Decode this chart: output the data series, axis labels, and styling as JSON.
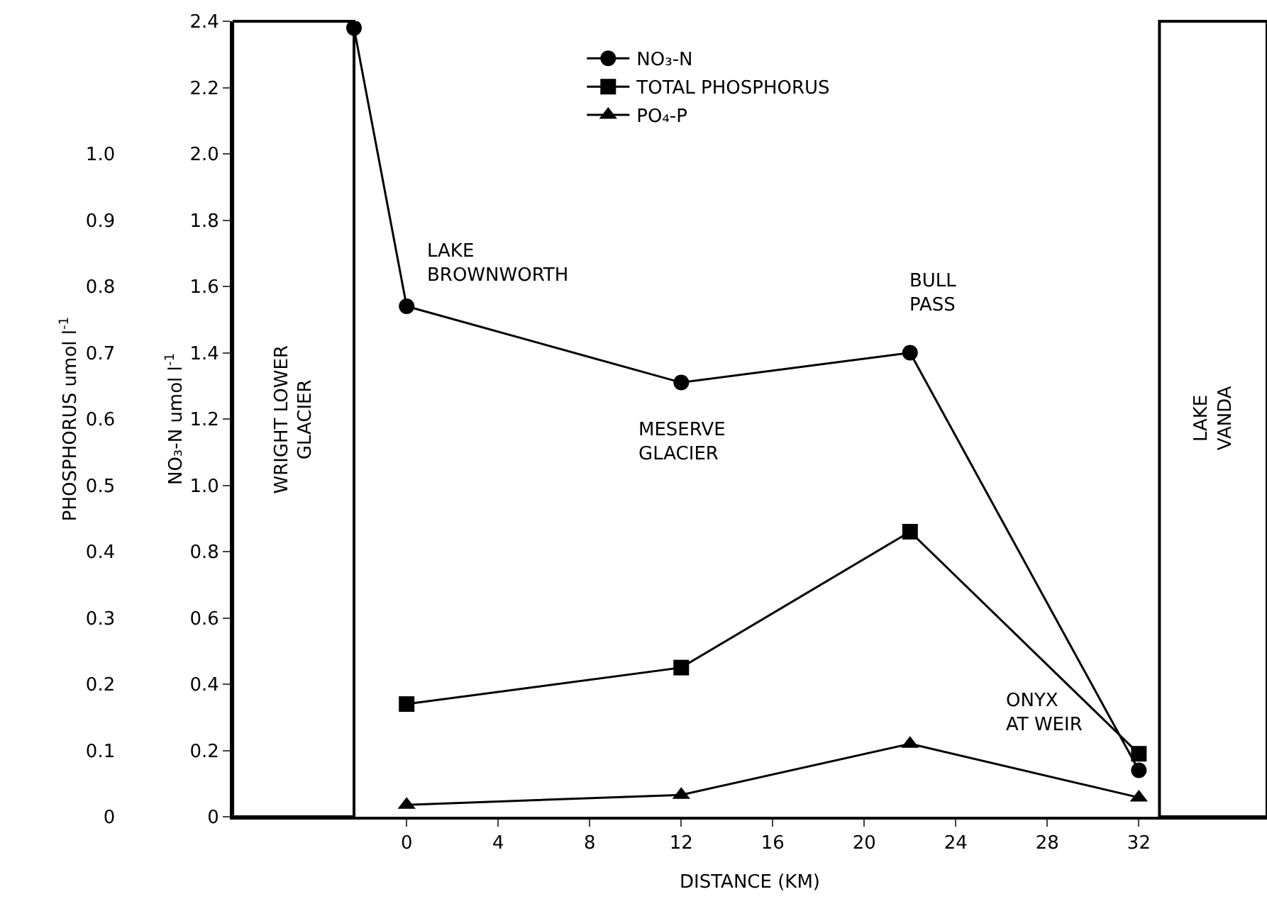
{
  "chart_data": {
    "type": "line",
    "xlabel": "DISTANCE (KM)",
    "ylabel": "NO₃-N umol l$^{-1}$",
    "y2label": "PHOSPHORUS umol l$^{-1}$",
    "xlim": [
      -7.6,
      37.6
    ],
    "xticks": [
      0,
      4,
      8,
      12,
      16,
      20,
      24,
      28,
      32
    ],
    "ylim": [
      0,
      2.4
    ],
    "yticks": [
      0,
      0.2,
      0.4,
      0.6,
      0.8,
      {
        "value": 1,
        "label": "1.0"
      },
      1.2,
      1.4,
      1.6,
      1.8,
      {
        "value": 2,
        "label": "2.0"
      },
      2.2,
      2.4
    ],
    "y2lim": [
      0,
      1.2
    ],
    "y2ticks": [
      0,
      0.1,
      0.2,
      0.3,
      0.4,
      0.5,
      0.6,
      0.7,
      0.8,
      0.9,
      {
        "value": 1,
        "label": "1.0"
      }
    ],
    "grid": false,
    "legend": "top",
    "series": [
      {
        "name": "NO₃-N",
        "color": "#000000",
        "marker": "circle",
        "x": [
          -2.3,
          0,
          12,
          22,
          32
        ],
        "values": [
          2.38,
          1.54,
          1.31,
          1.4,
          0.14
        ]
      },
      {
        "name": "TOTAL PHOSPHORUS",
        "color": "#000000",
        "marker": "square",
        "axis": "y2",
        "x": [
          0,
          12,
          22,
          32
        ],
        "values": [
          0.17,
          0.225,
          0.43,
          0.095
        ]
      },
      {
        "name": "PO₄-P",
        "color": "#000000",
        "marker": "triangle",
        "axis": "y2",
        "x": [
          0,
          12,
          22,
          32
        ],
        "values": [
          0.018,
          0.033,
          0.11,
          0.029
        ]
      }
    ],
    "annotations": [
      {
        "text": "LAKE\nBROWNWORTH",
        "x": 0,
        "y": 1.54
      },
      {
        "text": "MESERVE\nGLACIER",
        "x": 12,
        "y": 1.31
      },
      {
        "text": "BULL\nPASS",
        "x": 22,
        "y": 1.4
      },
      "ONYX\nAT WEIR"
    ],
    "bands": [
      {
        "axis": "x",
        "from": -7.6,
        "to": -2.3,
        "label": "WRIGHT LOWER\nGLACIER",
        "color": "#ffffff"
      },
      {
        "axis": "x",
        "from": 32.9,
        "to": 37.6,
        "label": "LAKE\nVANDA",
        "color": "#ffffff"
      }
    ]
  }
}
